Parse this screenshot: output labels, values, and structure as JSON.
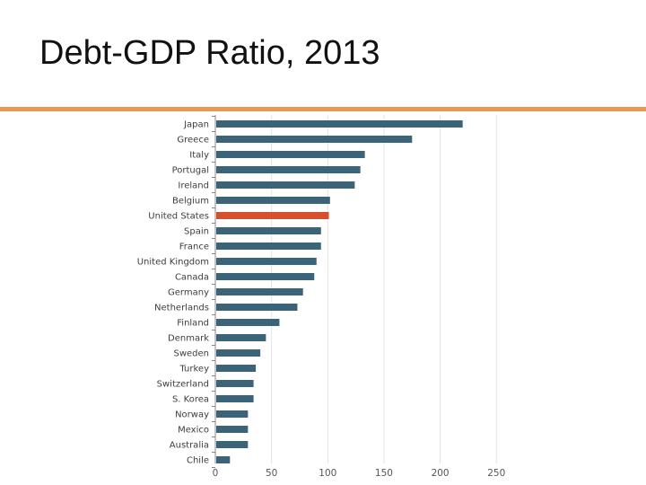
{
  "slide": {
    "title": "Debt-GDP Ratio, 2013"
  },
  "colors": {
    "rule": "#e8994f",
    "bar": "#3c6478",
    "highlight": "#d5502c",
    "grid": "#e3e3e3"
  },
  "chart_data": {
    "type": "bar",
    "orientation": "horizontal",
    "title": "Debt-GDP Ratio, 2013",
    "xlabel": "",
    "ylabel": "",
    "xlim": [
      0,
      250
    ],
    "xticks": [
      0,
      50,
      100,
      150,
      200,
      250
    ],
    "grid": true,
    "highlight": "United States",
    "categories": [
      "Japan",
      "Greece",
      "Italy",
      "Portugal",
      "Ireland",
      "Belgium",
      "United States",
      "Spain",
      "France",
      "United Kingdom",
      "Canada",
      "Germany",
      "Netherlands",
      "Finland",
      "Denmark",
      "Sweden",
      "Turkey",
      "Switzerland",
      "S. Korea",
      "Norway",
      "Mexico",
      "Australia",
      "Chile"
    ],
    "values": [
      220,
      175,
      133,
      129,
      124,
      102,
      101,
      94,
      94,
      90,
      88,
      78,
      73,
      57,
      45,
      40,
      36,
      34,
      34,
      29,
      29,
      29,
      13
    ]
  }
}
